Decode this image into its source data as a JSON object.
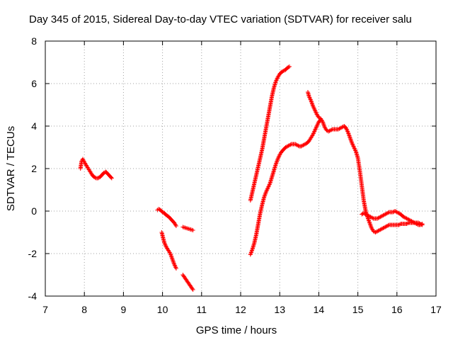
{
  "chart_data": {
    "type": "scatter",
    "title": "Day 345 of 2015, Sidereal Day-to-day VTEC variation (SDTVAR) for receiver salu",
    "xlabel": "GPS time / hours",
    "ylabel": "SDTVAR / TECUs",
    "xlim": [
      7,
      17
    ],
    "ylim": [
      -4,
      8
    ],
    "xticks": [
      "7",
      "8",
      "9",
      "10",
      "11",
      "12",
      "13",
      "14",
      "15",
      "16",
      "17"
    ],
    "yticks": [
      "-4",
      "-2",
      "0",
      "2",
      "4",
      "6",
      "8"
    ],
    "grid": true,
    "marker": "+",
    "series": [
      {
        "name": "SDTVAR",
        "color": "#ff0000",
        "segments": [
          [
            [
              7.9,
              2.0
            ],
            [
              7.93,
              2.35
            ],
            [
              7.96,
              2.45
            ],
            [
              8.0,
              2.3
            ],
            [
              8.05,
              2.15
            ],
            [
              8.1,
              2.0
            ],
            [
              8.15,
              1.85
            ],
            [
              8.2,
              1.7
            ],
            [
              8.25,
              1.6
            ],
            [
              8.3,
              1.55
            ],
            [
              8.35,
              1.55
            ],
            [
              8.4,
              1.6
            ],
            [
              8.45,
              1.7
            ],
            [
              8.5,
              1.8
            ],
            [
              8.55,
              1.85
            ],
            [
              8.6,
              1.75
            ],
            [
              8.65,
              1.65
            ],
            [
              8.7,
              1.55
            ]
          ],
          [
            [
              9.87,
              0.05
            ],
            [
              9.9,
              0.1
            ],
            [
              9.95,
              0.05
            ],
            [
              10.0,
              -0.05
            ],
            [
              10.05,
              -0.1
            ],
            [
              10.1,
              -0.2
            ],
            [
              10.15,
              -0.25
            ],
            [
              10.2,
              -0.35
            ],
            [
              10.25,
              -0.45
            ],
            [
              10.3,
              -0.55
            ],
            [
              10.35,
              -0.7
            ]
          ],
          [
            [
              9.98,
              -1.0
            ],
            [
              10.02,
              -1.3
            ],
            [
              10.05,
              -1.5
            ],
            [
              10.1,
              -1.7
            ],
            [
              10.15,
              -1.85
            ],
            [
              10.2,
              -2.0
            ],
            [
              10.25,
              -2.25
            ],
            [
              10.3,
              -2.5
            ],
            [
              10.35,
              -2.7
            ]
          ],
          [
            [
              10.52,
              -0.75
            ],
            [
              10.78,
              -0.9
            ],
            [
              10.52,
              -3.0
            ],
            [
              10.78,
              -3.7
            ]
          ],
          [
            [
              12.25,
              0.5
            ],
            [
              12.3,
              0.9
            ],
            [
              12.35,
              1.3
            ],
            [
              12.4,
              1.7
            ],
            [
              12.45,
              2.1
            ],
            [
              12.5,
              2.5
            ],
            [
              12.55,
              2.9
            ],
            [
              12.6,
              3.4
            ],
            [
              12.65,
              3.9
            ],
            [
              12.7,
              4.4
            ],
            [
              12.75,
              4.9
            ],
            [
              12.8,
              5.4
            ],
            [
              12.85,
              5.8
            ],
            [
              12.9,
              6.1
            ],
            [
              12.95,
              6.3
            ],
            [
              13.0,
              6.45
            ],
            [
              13.05,
              6.55
            ],
            [
              13.1,
              6.6
            ],
            [
              13.15,
              6.65
            ],
            [
              13.2,
              6.75
            ],
            [
              13.25,
              6.8
            ]
          ],
          [
            [
              12.25,
              -2.05
            ],
            [
              12.3,
              -1.8
            ],
            [
              12.35,
              -1.5
            ],
            [
              12.4,
              -1.1
            ],
            [
              12.45,
              -0.6
            ],
            [
              12.5,
              -0.1
            ],
            [
              12.55,
              0.3
            ],
            [
              12.6,
              0.65
            ],
            [
              12.65,
              0.9
            ],
            [
              12.7,
              1.1
            ],
            [
              12.75,
              1.3
            ],
            [
              12.8,
              1.6
            ],
            [
              12.85,
              1.9
            ],
            [
              12.9,
              2.2
            ],
            [
              12.95,
              2.45
            ],
            [
              13.0,
              2.65
            ],
            [
              13.05,
              2.8
            ],
            [
              13.1,
              2.9
            ],
            [
              13.15,
              3.0
            ],
            [
              13.2,
              3.05
            ],
            [
              13.25,
              3.1
            ],
            [
              13.3,
              3.15
            ],
            [
              13.35,
              3.15
            ],
            [
              13.4,
              3.15
            ],
            [
              13.45,
              3.1
            ],
            [
              13.5,
              3.05
            ],
            [
              13.55,
              3.05
            ],
            [
              13.6,
              3.1
            ],
            [
              13.65,
              3.15
            ],
            [
              13.7,
              3.2
            ],
            [
              13.75,
              3.3
            ],
            [
              13.8,
              3.45
            ],
            [
              13.85,
              3.6
            ],
            [
              13.9,
              3.8
            ],
            [
              13.95,
              4.0
            ],
            [
              14.0,
              4.2
            ],
            [
              14.05,
              4.3
            ]
          ],
          [
            [
              13.72,
              5.6
            ],
            [
              13.75,
              5.4
            ],
            [
              13.8,
              5.2
            ],
            [
              13.85,
              4.95
            ],
            [
              13.9,
              4.75
            ],
            [
              13.95,
              4.55
            ],
            [
              14.0,
              4.4
            ],
            [
              14.05,
              4.35
            ],
            [
              14.1,
              4.2
            ],
            [
              14.15,
              3.95
            ],
            [
              14.2,
              3.8
            ],
            [
              14.25,
              3.75
            ],
            [
              14.3,
              3.8
            ],
            [
              14.35,
              3.85
            ],
            [
              14.4,
              3.85
            ],
            [
              14.45,
              3.85
            ],
            [
              14.5,
              3.85
            ],
            [
              14.55,
              3.9
            ],
            [
              14.6,
              3.95
            ],
            [
              14.65,
              4.0
            ],
            [
              14.7,
              3.9
            ],
            [
              14.75,
              3.7
            ],
            [
              14.8,
              3.45
            ],
            [
              14.85,
              3.2
            ],
            [
              14.9,
              3.0
            ],
            [
              14.95,
              2.8
            ],
            [
              15.0,
              2.5
            ],
            [
              15.05,
              1.9
            ],
            [
              15.1,
              1.2
            ],
            [
              15.15,
              0.5
            ],
            [
              15.2,
              0.0
            ],
            [
              15.25,
              -0.3
            ],
            [
              15.3,
              -0.55
            ],
            [
              15.35,
              -0.8
            ],
            [
              15.4,
              -0.95
            ],
            [
              15.45,
              -1.0
            ],
            [
              15.5,
              -0.95
            ],
            [
              15.55,
              -0.9
            ],
            [
              15.6,
              -0.85
            ],
            [
              15.65,
              -0.8
            ],
            [
              15.7,
              -0.75
            ],
            [
              15.75,
              -0.7
            ],
            [
              15.8,
              -0.65
            ],
            [
              15.85,
              -0.65
            ],
            [
              15.9,
              -0.65
            ],
            [
              15.95,
              -0.65
            ],
            [
              16.0,
              -0.65
            ],
            [
              16.05,
              -0.65
            ],
            [
              16.1,
              -0.6
            ],
            [
              16.15,
              -0.6
            ],
            [
              16.2,
              -0.6
            ],
            [
              16.25,
              -0.6
            ],
            [
              16.3,
              -0.55
            ],
            [
              16.35,
              -0.55
            ],
            [
              16.4,
              -0.55
            ],
            [
              16.45,
              -0.55
            ],
            [
              16.5,
              -0.55
            ],
            [
              16.55,
              -0.55
            ],
            [
              16.6,
              -0.6
            ],
            [
              16.65,
              -0.65
            ]
          ],
          [
            [
              15.1,
              -0.15
            ],
            [
              15.15,
              -0.1
            ],
            [
              15.2,
              -0.15
            ],
            [
              15.25,
              -0.2
            ],
            [
              15.3,
              -0.25
            ],
            [
              15.35,
              -0.3
            ],
            [
              15.4,
              -0.35
            ],
            [
              15.45,
              -0.35
            ],
            [
              15.5,
              -0.35
            ],
            [
              15.55,
              -0.3
            ],
            [
              15.6,
              -0.25
            ],
            [
              15.65,
              -0.2
            ],
            [
              15.7,
              -0.15
            ],
            [
              15.75,
              -0.1
            ],
            [
              15.8,
              -0.05
            ],
            [
              15.85,
              -0.05
            ],
            [
              15.9,
              -0.05
            ],
            [
              15.95,
              0.0
            ],
            [
              16.0,
              -0.05
            ],
            [
              16.05,
              -0.1
            ],
            [
              16.1,
              -0.15
            ],
            [
              16.15,
              -0.25
            ],
            [
              16.2,
              -0.3
            ],
            [
              16.25,
              -0.35
            ],
            [
              16.3,
              -0.4
            ],
            [
              16.35,
              -0.45
            ],
            [
              16.4,
              -0.5
            ],
            [
              16.45,
              -0.55
            ],
            [
              16.5,
              -0.6
            ],
            [
              16.55,
              -0.65
            ],
            [
              16.6,
              -0.65
            ],
            [
              16.65,
              -0.6
            ]
          ]
        ]
      }
    ]
  }
}
